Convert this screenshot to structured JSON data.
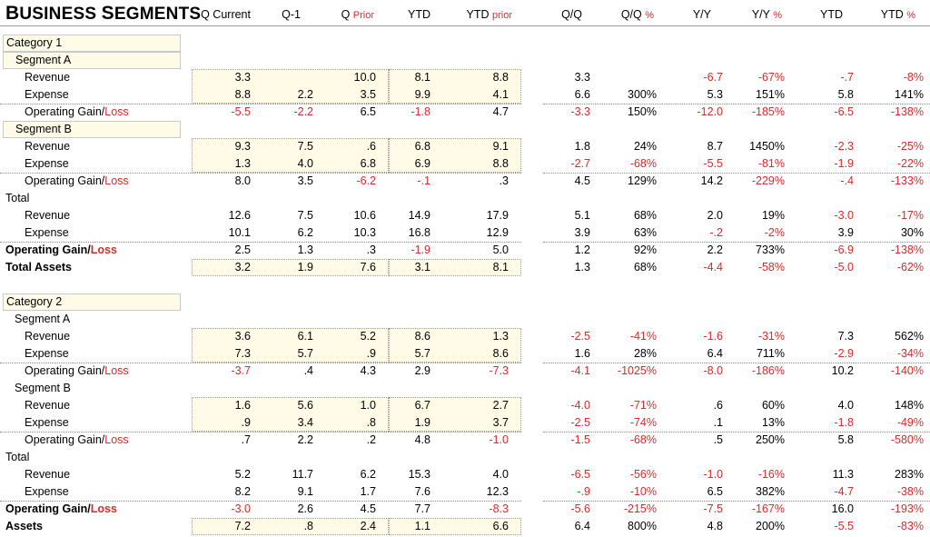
{
  "title": {
    "cap1": "B",
    "rest1": "USINESS ",
    "cap2": "S",
    "rest2": "EGMENTS"
  },
  "headers": [
    {
      "black": "Q Current",
      "red": ""
    },
    {
      "black": "Q-1",
      "red": ""
    },
    {
      "black": "Q ",
      "red": "Prior"
    },
    {
      "black": "YTD",
      "red": ""
    },
    {
      "black": "YTD ",
      "red": "prior"
    },
    {
      "black": "Q/Q",
      "red": ""
    },
    {
      "black": "Q/Q ",
      "red": "%"
    },
    {
      "black": "Y/Y",
      "red": ""
    },
    {
      "black": "Y/Y ",
      "red": "%"
    },
    {
      "black": "YTD",
      "red": ""
    },
    {
      "black": "YTD ",
      "red": "%"
    }
  ],
  "rows": [
    {
      "style": "box",
      "indent": 0,
      "label": "Category 1",
      "values": []
    },
    {
      "style": "box",
      "indent": 1,
      "label": "Segment A",
      "values": []
    },
    {
      "style": "normal",
      "indent": 2,
      "label": "Revenue",
      "values": [
        "3.3",
        "",
        "10.0",
        "8.1",
        "8.8",
        "3.3",
        "",
        "-6.7",
        "-67%",
        "-.7",
        "-8%"
      ]
    },
    {
      "style": "normal",
      "indent": 2,
      "label": "Expense",
      "values": [
        "8.8",
        "2.2",
        "3.5",
        "9.9",
        "4.1",
        "6.6",
        "300%",
        "5.3",
        "151%",
        "5.8",
        "141%"
      ]
    },
    {
      "style": "normal",
      "indent": 2,
      "label": "Operating Gain/",
      "label_red": "Loss",
      "values": [
        "-5.5",
        "-2.2",
        "6.5",
        "-1.8",
        "4.7",
        "-3.3",
        "150%",
        "-12.0",
        "-185%",
        "-6.5",
        "-138%"
      ]
    },
    {
      "style": "box",
      "indent": 1,
      "label": "Segment B",
      "values": []
    },
    {
      "style": "normal",
      "indent": 2,
      "label": "Revenue",
      "values": [
        "9.3",
        "7.5",
        ".6",
        "6.8",
        "9.1",
        "1.8",
        "24%",
        "8.7",
        "1450%",
        "-2.3",
        "-25%"
      ]
    },
    {
      "style": "normal",
      "indent": 2,
      "label": "Expense",
      "values": [
        "1.3",
        "4.0",
        "6.8",
        "6.9",
        "8.8",
        "-2.7",
        "-68%",
        "-5.5",
        "-81%",
        "-1.9",
        "-22%"
      ]
    },
    {
      "style": "normal",
      "indent": 2,
      "label": "Operating Gain/",
      "label_red": "Loss",
      "values": [
        "8.0",
        "3.5",
        "-6.2",
        "-.1",
        ".3",
        "4.5",
        "129%",
        "14.2",
        "-229%",
        "-.4",
        "-133%"
      ]
    },
    {
      "style": "normal",
      "indent": 0,
      "label": "Total",
      "values": []
    },
    {
      "style": "normal",
      "indent": 2,
      "label": "Revenue",
      "values": [
        "12.6",
        "7.5",
        "10.6",
        "14.9",
        "17.9",
        "5.1",
        "68%",
        "2.0",
        "19%",
        "-3.0",
        "-17%"
      ]
    },
    {
      "style": "normal",
      "indent": 2,
      "label": "Expense",
      "values": [
        "10.1",
        "6.2",
        "10.3",
        "16.8",
        "12.9",
        "3.9",
        "63%",
        "-.2",
        "-2%",
        "3.9",
        "30%"
      ]
    },
    {
      "style": "bold",
      "indent": 0,
      "label": "Operating Gain/",
      "label_red": "Loss",
      "values": [
        "2.5",
        "1.3",
        ".3",
        "-1.9",
        "5.0",
        "1.2",
        "92%",
        "2.2",
        "733%",
        "-6.9",
        "-138%"
      ]
    },
    {
      "style": "bold",
      "indent": 0,
      "label": "Total Assets",
      "values": [
        "3.2",
        "1.9",
        "7.6",
        "3.1",
        "8.1",
        "1.3",
        "68%",
        "-4.4",
        "-58%",
        "-5.0",
        "-62%"
      ]
    },
    {
      "style": "blank",
      "indent": 0,
      "label": "",
      "values": []
    },
    {
      "style": "box",
      "indent": 0,
      "label": "Category 2",
      "values": []
    },
    {
      "style": "normal",
      "indent": 1,
      "label": "Segment A",
      "values": []
    },
    {
      "style": "normal",
      "indent": 2,
      "label": "Revenue",
      "values": [
        "3.6",
        "6.1",
        "5.2",
        "8.6",
        "1.3",
        "-2.5",
        "-41%",
        "-1.6",
        "-31%",
        "7.3",
        "562%"
      ]
    },
    {
      "style": "normal",
      "indent": 2,
      "label": "Expense",
      "values": [
        "7.3",
        "5.7",
        ".9",
        "5.7",
        "8.6",
        "1.6",
        "28%",
        "6.4",
        "711%",
        "-2.9",
        "-34%"
      ]
    },
    {
      "style": "normal",
      "indent": 2,
      "label": "Operating Gain/",
      "label_red": "Loss",
      "values": [
        "-3.7",
        ".4",
        "4.3",
        "2.9",
        "-7.3",
        "-4.1",
        "-1025%",
        "-8.0",
        "-186%",
        "10.2",
        "-140%"
      ]
    },
    {
      "style": "normal",
      "indent": 1,
      "label": "Segment B",
      "values": []
    },
    {
      "style": "normal",
      "indent": 2,
      "label": "Revenue",
      "values": [
        "1.6",
        "5.6",
        "1.0",
        "6.7",
        "2.7",
        "-4.0",
        "-71%",
        ".6",
        "60%",
        "4.0",
        "148%"
      ]
    },
    {
      "style": "normal",
      "indent": 2,
      "label": "Expense",
      "values": [
        ".9",
        "3.4",
        ".8",
        "1.9",
        "3.7",
        "-2.5",
        "-74%",
        ".1",
        "13%",
        "-1.8",
        "-49%"
      ]
    },
    {
      "style": "normal",
      "indent": 2,
      "label": "Operating Gain/",
      "label_red": "Loss",
      "values": [
        ".7",
        "2.2",
        ".2",
        "4.8",
        "-1.0",
        "-1.5",
        "-68%",
        ".5",
        "250%",
        "5.8",
        "-580%"
      ]
    },
    {
      "style": "normal",
      "indent": 0,
      "label": "Total",
      "values": []
    },
    {
      "style": "normal",
      "indent": 2,
      "label": "Revenue",
      "values": [
        "5.2",
        "11.7",
        "6.2",
        "15.3",
        "4.0",
        "-6.5",
        "-56%",
        "-1.0",
        "-16%",
        "11.3",
        "283%"
      ]
    },
    {
      "style": "normal",
      "indent": 2,
      "label": "Expense",
      "values": [
        "8.2",
        "9.1",
        "1.7",
        "7.6",
        "12.3",
        "-.9",
        "-10%",
        "6.5",
        "382%",
        "-4.7",
        "-38%"
      ]
    },
    {
      "style": "bold",
      "indent": 0,
      "label": "Operating Gain/",
      "label_red": "Loss",
      "values": [
        "-3.0",
        "2.6",
        "4.5",
        "7.7",
        "-8.3",
        "-5.6",
        "-215%",
        "-7.5",
        "-167%",
        "16.0",
        "-193%"
      ]
    },
    {
      "style": "bold",
      "indent": 0,
      "label": "Assets",
      "values": [
        "7.2",
        ".8",
        "2.4",
        "1.1",
        "6.6",
        "6.4",
        "800%",
        "4.8",
        "200%",
        "-5.5",
        "-83%"
      ]
    }
  ],
  "colors": {
    "negative": "#d92b2b",
    "highlight": "#fffbe6"
  }
}
